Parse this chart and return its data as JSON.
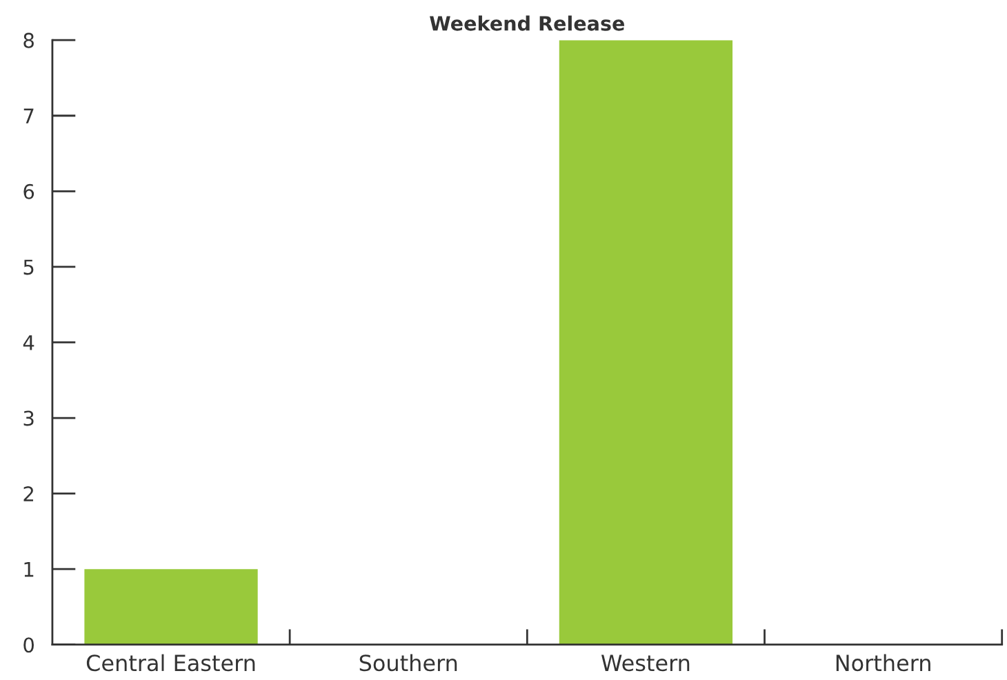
{
  "chart_data": {
    "type": "bar",
    "title": "Weekend Release",
    "categories": [
      "Central Eastern",
      "Southern",
      "Western",
      "Northern"
    ],
    "values": [
      1,
      0,
      8,
      0
    ],
    "color": "#99c93b",
    "ylim": [
      0,
      8
    ],
    "yticks": [
      0,
      1,
      2,
      3,
      4,
      5,
      6,
      7,
      8
    ],
    "grid": false,
    "legend": false
  }
}
